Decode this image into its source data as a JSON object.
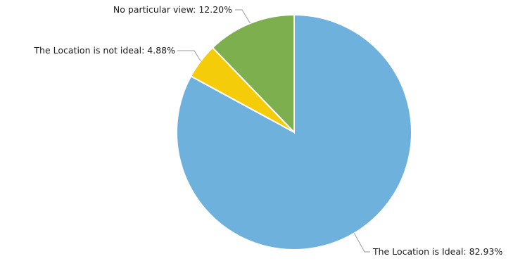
{
  "chart_data": {
    "type": "pie",
    "title": "",
    "slices": [
      {
        "label": "The Location is Ideal: 82.93%",
        "value": 82.93,
        "color": "#6EB1DD"
      },
      {
        "label": "The Location is not ideal: 4.88%",
        "value": 4.88,
        "color": "#F5CC0A"
      },
      {
        "label": "No particular view: 12.20%",
        "value": 12.2,
        "color": "#7EAF4E"
      }
    ],
    "legend": "none",
    "labels": "outside-with-leader-lines"
  }
}
